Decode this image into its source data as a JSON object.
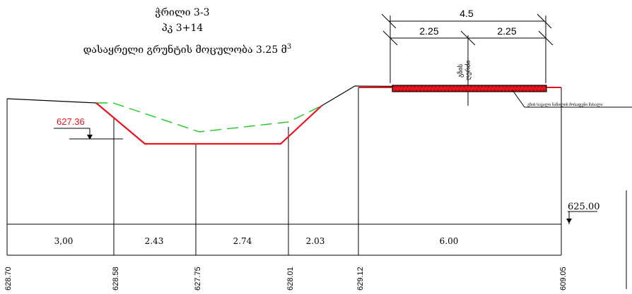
{
  "title": {
    "line1": "ჭრილი 3-3",
    "line2": "პკ 3+14",
    "line3": "დასაყრელი გრუნტის მოცულობა 3.25 მ",
    "line3_sup": "3"
  },
  "road": {
    "total_width": "4.5",
    "half_left": "2.25",
    "half_right": "2.25",
    "axis_label_1": "გზის",
    "axis_label_2": "ღერძი",
    "pavement_note": "გზის სავალი ნაწილის მოსაფენი მასალა"
  },
  "elevations": {
    "red_mark": "627.36",
    "datum": "625.00"
  },
  "distances": [
    "3,00",
    "2.43",
    "2.74",
    "2.03",
    "6.00"
  ],
  "ground_levels": [
    "628.70",
    "628.58",
    "627.75",
    "628.01",
    "629.12",
    "609.05"
  ],
  "colors": {
    "design_line": "#e8141e",
    "fill_line": "#22c81e",
    "ground_line": "#000000",
    "background": "#ffffff"
  }
}
